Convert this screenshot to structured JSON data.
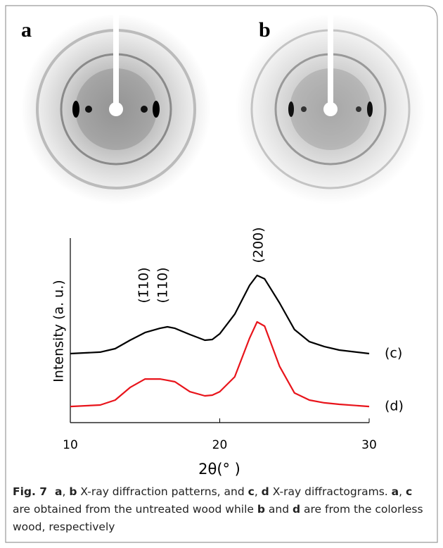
{
  "panels": [
    {
      "label": "a"
    },
    {
      "label": "b"
    }
  ],
  "chart_data": {
    "type": "line",
    "x_label": "2θ(°  )",
    "y_label": "Intensity (a. u.)",
    "x": [
      10,
      12,
      13,
      14,
      15,
      16,
      16.5,
      17,
      18,
      19,
      19.5,
      20,
      21,
      22,
      22.5,
      23,
      24,
      25,
      26,
      27,
      28,
      30
    ],
    "series": [
      {
        "name": "(c)",
        "color": "#000000",
        "values": [
          37.7,
          38.5,
          40.4,
          45,
          49.2,
          51.5,
          52.3,
          51.5,
          48.1,
          45,
          45.4,
          48.5,
          59.2,
          75,
          80.4,
          78.5,
          65.4,
          50.8,
          44.2,
          41.5,
          39.6,
          37.7
        ]
      },
      {
        "name": "(d)",
        "color": "#e8141b",
        "values": [
          8.8,
          9.6,
          12.3,
          19.2,
          23.8,
          23.8,
          23.1,
          22.3,
          16.9,
          14.6,
          15,
          16.9,
          25,
          46.2,
          55,
          52.7,
          30.8,
          16.2,
          12.3,
          10.8,
          10,
          8.8
        ]
      }
    ],
    "annotations": [
      "(1̄10)",
      "(110)",
      "(200)"
    ],
    "xlim": [
      10,
      30
    ],
    "xticks": [
      10,
      20,
      30
    ],
    "ylim": [
      0,
      100
    ]
  },
  "caption": {
    "label": "Fig. 7",
    "segments": [
      {
        "text": "a",
        "bold": true
      },
      {
        "text": ", ",
        "bold": false
      },
      {
        "text": "b",
        "bold": true
      },
      {
        "text": " X-ray diffraction patterns, and ",
        "bold": false
      },
      {
        "text": "c",
        "bold": true
      },
      {
        "text": ", ",
        "bold": false
      },
      {
        "text": "d",
        "bold": true
      },
      {
        "text": " X-ray diffractograms. ",
        "bold": false
      },
      {
        "text": "a",
        "bold": true
      },
      {
        "text": ", ",
        "bold": false
      },
      {
        "text": "c",
        "bold": true
      },
      {
        "text": " are obtained from the untreated wood while ",
        "bold": false
      },
      {
        "text": "b",
        "bold": true
      },
      {
        "text": " and ",
        "bold": false
      },
      {
        "text": "d",
        "bold": true
      },
      {
        "text": " are from the colorless wood, respectively",
        "bold": false
      }
    ]
  }
}
